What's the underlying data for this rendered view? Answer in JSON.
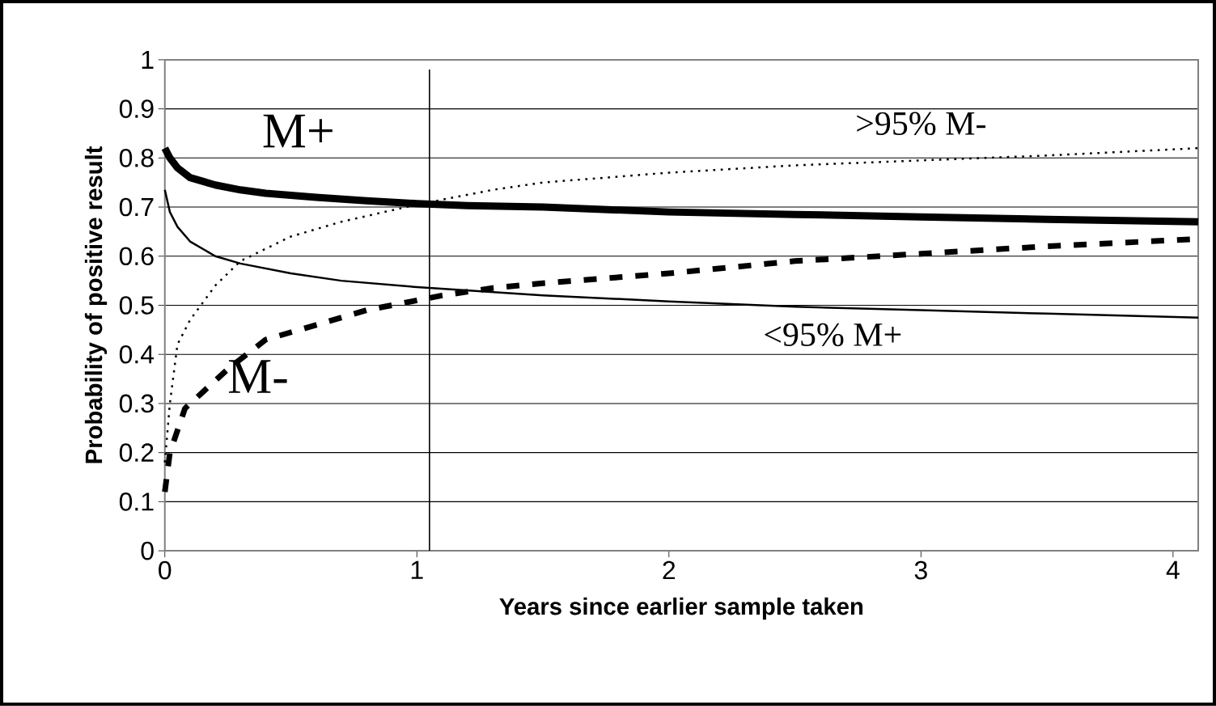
{
  "chart_data": {
    "type": "line",
    "xlabel": "Years since earlier sample taken",
    "ylabel": "Probability of positive result",
    "xlim": [
      0,
      4.1
    ],
    "ylim": [
      0,
      1
    ],
    "xticks": [
      0,
      1,
      2,
      3,
      4
    ],
    "yticks": [
      0,
      0.1,
      0.2,
      0.3,
      0.4,
      0.5,
      0.6,
      0.7,
      0.8,
      0.9,
      1
    ],
    "grid": "y",
    "ref_lines": [
      {
        "axis": "x",
        "value": 1.05,
        "color": "#000000"
      }
    ],
    "series": [
      {
        "name": "M+",
        "color": "#000000",
        "line_style": "solid",
        "x": [
          0,
          0.02,
          0.05,
          0.1,
          0.2,
          0.3,
          0.4,
          0.6,
          0.8,
          1.0,
          1.2,
          1.5,
          2.0,
          2.5,
          3.0,
          3.5,
          4.1
        ],
        "values": [
          0.82,
          0.8,
          0.78,
          0.76,
          0.745,
          0.735,
          0.728,
          0.72,
          0.713,
          0.707,
          0.703,
          0.7,
          0.69,
          0.685,
          0.68,
          0.675,
          0.67
        ]
      },
      {
        "name": "<95% M+",
        "color": "#000000",
        "line_style": "solid",
        "x": [
          0,
          0.02,
          0.05,
          0.1,
          0.2,
          0.3,
          0.5,
          0.7,
          1.0,
          1.5,
          2.0,
          2.5,
          3.0,
          3.5,
          4.1
        ],
        "values": [
          0.735,
          0.69,
          0.66,
          0.63,
          0.6,
          0.585,
          0.565,
          0.55,
          0.537,
          0.52,
          0.508,
          0.497,
          0.49,
          0.483,
          0.475
        ]
      },
      {
        "name": ">95% M-",
        "color": "#000000",
        "line_style": "dotted",
        "x": [
          0,
          0.02,
          0.05,
          0.1,
          0.2,
          0.3,
          0.5,
          0.7,
          1.0,
          1.3,
          1.5,
          2.0,
          2.5,
          3.0,
          3.5,
          4.1
        ],
        "values": [
          0.18,
          0.3,
          0.42,
          0.47,
          0.54,
          0.59,
          0.64,
          0.67,
          0.705,
          0.735,
          0.75,
          0.77,
          0.785,
          0.795,
          0.805,
          0.82
        ]
      },
      {
        "name": "M-",
        "color": "#000000",
        "line_style": "dashed",
        "x": [
          0,
          0.02,
          0.08,
          0.25,
          0.4,
          0.6,
          0.8,
          0.95,
          1.1,
          1.3,
          1.5,
          2.0,
          2.5,
          3.0,
          3.5,
          4.1
        ],
        "values": [
          0.12,
          0.2,
          0.29,
          0.37,
          0.43,
          0.46,
          0.49,
          0.505,
          0.52,
          0.535,
          0.545,
          0.565,
          0.59,
          0.605,
          0.62,
          0.635
        ]
      }
    ]
  }
}
